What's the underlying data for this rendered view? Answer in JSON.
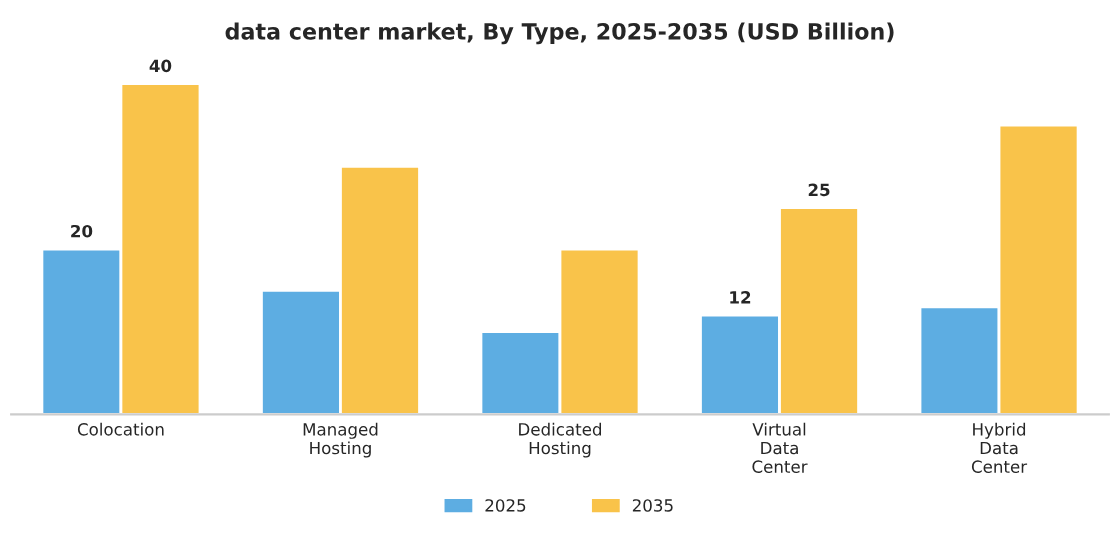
{
  "chart_data": {
    "type": "bar",
    "title": "data center market, By Type, 2025-2035 (USD Billion)",
    "categories": [
      "Colocation",
      "Managed\nHosting",
      "Dedicated\nHosting",
      "Virtual\nData\nCenter",
      "Hybrid\nData\nCenter"
    ],
    "series": [
      {
        "name": "2025",
        "color": "#5dade2",
        "values": [
          20,
          15,
          10,
          12,
          13
        ],
        "value_labels": [
          "20",
          null,
          null,
          "12",
          null
        ]
      },
      {
        "name": "2035",
        "color": "#f9c34a",
        "values": [
          40,
          30,
          20,
          25,
          35
        ],
        "value_labels": [
          "40",
          null,
          null,
          "25",
          null
        ]
      }
    ],
    "tick_labels": "x",
    "grid": false,
    "legend": "bottom"
  }
}
